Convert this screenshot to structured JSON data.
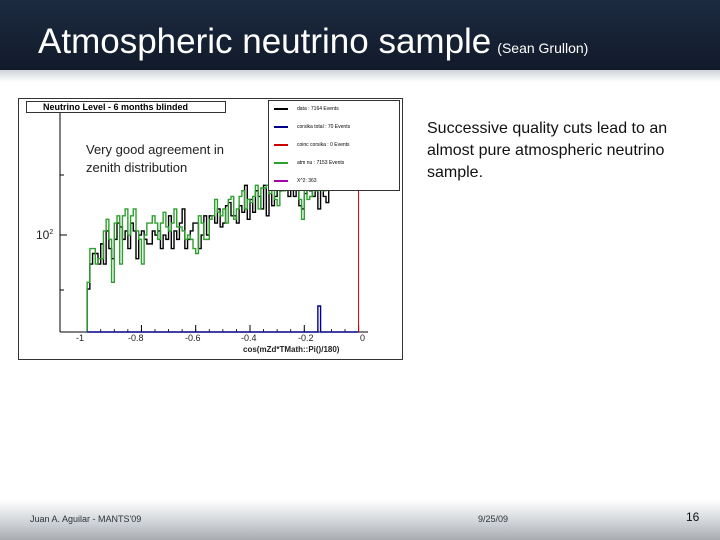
{
  "slide": {
    "title": "Atmospheric neutrino sample",
    "title_sub": "(Sean Grullon)",
    "body": "Successive quality cuts lead to an almost pure atmospheric neutrino sample.",
    "footer_left": "Juan A. Aguilar - MANTS'09",
    "footer_date": "9/25/09",
    "page_number": "16"
  },
  "colors": {
    "header_bg": "#1c2a40",
    "data": "#000000",
    "corsika_total": "#00008b",
    "corsika_coinc": "#cc0000",
    "atm_nu": "#2ca02c",
    "chi2": "#aa00aa"
  },
  "chart_data": {
    "type": "line",
    "title": "Neutrino Level - 6 months blinded",
    "annotation": "Very good agreement in zenith distribution",
    "xlabel": "cos(mZd*TMath::Pi()/180)",
    "ylabel": "",
    "xlim": [
      -1.1,
      0.02
    ],
    "log_y": true,
    "y_tick_label": "10",
    "y_tick_exponent": "2",
    "x_ticks": [
      {
        "value": -1.0,
        "label": "-1"
      },
      {
        "value": -0.8,
        "label": "-0.8"
      },
      {
        "value": -0.6,
        "label": "-0.6"
      },
      {
        "value": -0.4,
        "label": "-0.4"
      },
      {
        "value": -0.2,
        "label": "-0.2"
      },
      {
        "value": 0.0,
        "label": "0"
      }
    ],
    "legend": [
      {
        "label": "data : 7164 Events",
        "color_key": "data"
      },
      {
        "label": "corsika total : 70 Events",
        "color_key": "corsika_total"
      },
      {
        "label": "coinc corsika : 0 Events",
        "color_key": "corsika_coinc"
      },
      {
        "label": "atm nu : 7153 Events",
        "color_key": "atm_nu"
      },
      {
        "label": "X^2: 363",
        "color_key": "chi2"
      }
    ],
    "bins_x_start": -1.0,
    "bin_width": 0.01,
    "series": [
      {
        "name": "data",
        "values": [
          75,
          95,
          105,
          105,
          95,
          115,
          95,
          130,
          110,
          100,
          120,
          140,
          135,
          120,
          130,
          110,
          140,
          130,
          100,
          125,
          130,
          120,
          115,
          115,
          130,
          125,
          130,
          110,
          125,
          120,
          150,
          110,
          130,
          120,
          140,
          160,
          110,
          120,
          130,
          140,
          140,
          110,
          125,
          150,
          125,
          150,
          150,
          140,
          160,
          135,
          140,
          165,
          170,
          150,
          150,
          140,
          165,
          155,
          200,
          145,
          175,
          155,
          190,
          180,
          160,
          200,
          150,
          230,
          165,
          180,
          210,
          190,
          200,
          260,
          180,
          195,
          180,
          200,
          165,
          160,
          185,
          220,
          190,
          180,
          200,
          160,
          220,
          180,
          170,
          220,
          260,
          290,
          270,
          300,
          280,
          250,
          300,
          330,
          260,
          300
        ]
      },
      {
        "name": "atm nu",
        "values": [
          80,
          110,
          110,
          95,
          100,
          100,
          130,
          145,
          120,
          80,
          140,
          150,
          95,
          150,
          160,
          125,
          150,
          160,
          130,
          120,
          95,
          125,
          140,
          140,
          150,
          140,
          120,
          140,
          155,
          135,
          130,
          140,
          160,
          135,
          135,
          130,
          120,
          125,
          120,
          110,
          105,
          150,
          140,
          120,
          120,
          145,
          150,
          175,
          155,
          150,
          160,
          140,
          175,
          180,
          145,
          160,
          180,
          190,
          160,
          175,
          170,
          180,
          200,
          160,
          195,
          195,
          200,
          185,
          195,
          175,
          165,
          210,
          190,
          200,
          200,
          220,
          195,
          200,
          175,
          145,
          200,
          175,
          180,
          215,
          190,
          200,
          210,
          190,
          210,
          220,
          220,
          240,
          250,
          260,
          260,
          270,
          290,
          300,
          310,
          320
        ]
      },
      {
        "name": "corsika total",
        "values": [
          0,
          0,
          0,
          0,
          0,
          0,
          0,
          0,
          0,
          0,
          0,
          0,
          0,
          0,
          0,
          0,
          0,
          0,
          0,
          0,
          0,
          0,
          0,
          0,
          0,
          0,
          0,
          0,
          0,
          0,
          0,
          0,
          0,
          0,
          0,
          0,
          0,
          0,
          0,
          0,
          0,
          0,
          0,
          0,
          0,
          0,
          0,
          0,
          0,
          0,
          0,
          0,
          0,
          0,
          0,
          0,
          0,
          0,
          0,
          0,
          0,
          0,
          0,
          0,
          0,
          0,
          0,
          0,
          0,
          0,
          0,
          0,
          0,
          0,
          0,
          0,
          0,
          0,
          0,
          0,
          0,
          0,
          0,
          0,
          0,
          2,
          0,
          0,
          0,
          0,
          0,
          0,
          0,
          0,
          0,
          0,
          0,
          0,
          0,
          0
        ]
      }
    ]
  }
}
